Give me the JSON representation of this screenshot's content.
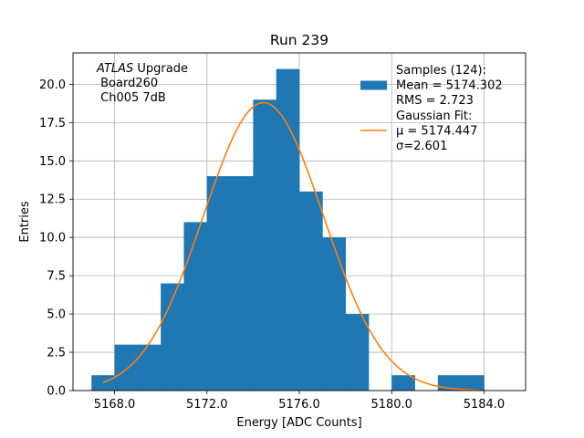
{
  "chart_data": {
    "type": "bar",
    "title": "Run 239",
    "xlabel": "Energy [ADC Counts]",
    "ylabel": "Entries",
    "xlim": [
      5166.2,
      5185.8
    ],
    "ylim": [
      0,
      22.05
    ],
    "xticks": [
      {
        "value": 5168,
        "label": "5168.0"
      },
      {
        "value": 5172,
        "label": "5172.0"
      },
      {
        "value": 5176,
        "label": "5176.0"
      },
      {
        "value": 5180,
        "label": "5180.0"
      },
      {
        "value": 5184,
        "label": "5184.0"
      }
    ],
    "yticks": [
      {
        "value": 0,
        "label": "0.0"
      },
      {
        "value": 2.5,
        "label": "2.5"
      },
      {
        "value": 5,
        "label": "5.0"
      },
      {
        "value": 7.5,
        "label": "7.5"
      },
      {
        "value": 10,
        "label": "10.0"
      },
      {
        "value": 12.5,
        "label": "12.5"
      },
      {
        "value": 15,
        "label": "15.0"
      },
      {
        "value": 17.5,
        "label": "17.5"
      },
      {
        "value": 20,
        "label": "20.0"
      }
    ],
    "grid": true,
    "bar_color": "#1f77b4",
    "fit_color": "#ff7f0e",
    "histogram": {
      "bin_edges": [
        5167,
        5168,
        5169,
        5170,
        5171,
        5172,
        5173,
        5174,
        5175,
        5176,
        5177,
        5178,
        5179,
        5180,
        5181,
        5182,
        5183,
        5184
      ],
      "counts": [
        1,
        3,
        3,
        7,
        11,
        14,
        14,
        19,
        21,
        13,
        10,
        5,
        0,
        1,
        0,
        1,
        1
      ]
    },
    "gaussian_fit": {
      "mu": 5174.447,
      "sigma": 2.601,
      "amplitude": 18.8,
      "x_range": [
        5167.5,
        5183.8
      ]
    },
    "annotation": {
      "line1_italic": "ATLAS",
      "line1_rest": " Upgrade",
      "line2": " Board260",
      "line3": " Ch005 7dB"
    },
    "legend": {
      "position": "top-right",
      "entries": [
        {
          "kind": "patch",
          "lines": [
            "Samples (124):",
            " Mean = 5174.302",
            " RMS = 2.723"
          ]
        },
        {
          "kind": "line",
          "lines": [
            "Gaussian Fit:",
            " μ = 5174.447",
            " σ=2.601"
          ]
        }
      ]
    }
  }
}
